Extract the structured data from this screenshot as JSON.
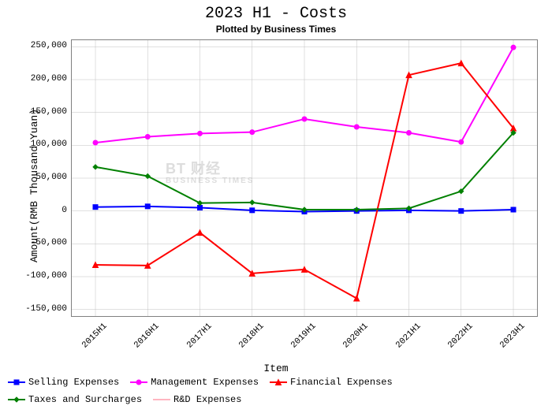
{
  "title": "2023 H1 - Costs",
  "subtitle": "Plotted by Business Times",
  "ylabel": "Amount(RMB Thousand Yuan)",
  "xlabel": "Item",
  "watermark": "BT 财经",
  "watermark_sub": "BUSINESS TIMES",
  "watermark_color": "#dddddd",
  "plot": {
    "background": "#ffffff",
    "border_color": "#808080",
    "grid_color": "#c0c0c0",
    "grid_width": 0.5,
    "categories": [
      "2015H1",
      "2016H1",
      "2017H1",
      "2018H1",
      "2019H1",
      "2020H1",
      "2021H1",
      "2022H1",
      "2023H1"
    ],
    "ylim": [
      -160000,
      260000
    ],
    "yticks": [
      -150000,
      -100000,
      -50000,
      0,
      50000,
      100000,
      150000,
      200000,
      250000
    ],
    "ytick_labels": [
      "-150,000",
      "-100,000",
      "-50,000",
      "0",
      "50,000",
      "100,000",
      "150,000",
      "200,000",
      "250,000"
    ],
    "label_fontsize": 11,
    "xlabel_rotation": -45
  },
  "series": [
    {
      "name": "Selling Expenses",
      "color": "#0000ff",
      "marker": "square",
      "line_width": 2,
      "marker_size": 6,
      "data": [
        6000,
        7000,
        5000,
        1000,
        -1000,
        0,
        1000,
        0,
        2000
      ]
    },
    {
      "name": "Management Expenses",
      "color": "#ff00ff",
      "marker": "circle",
      "line_width": 2,
      "marker_size": 6,
      "data": [
        104000,
        113000,
        118000,
        120000,
        140000,
        128000,
        119000,
        105000,
        249000
      ]
    },
    {
      "name": "Financial Expenses",
      "color": "#ff0000",
      "marker": "triangle",
      "line_width": 2,
      "marker_size": 7,
      "data": [
        -82000,
        -83000,
        -33000,
        -95000,
        -89000,
        -133000,
        207000,
        225000,
        126000
      ]
    },
    {
      "name": "Taxes and Surcharges",
      "color": "#008000",
      "marker": "diamond",
      "line_width": 2,
      "marker_size": 6,
      "data": [
        67000,
        53000,
        12000,
        13000,
        2000,
        2000,
        4000,
        30000,
        119000
      ]
    },
    {
      "name": "R&D Expenses",
      "color": "#ffb6c1",
      "marker": "dash",
      "line_width": 2,
      "marker_size": 6,
      "data": [
        null,
        null,
        null,
        null,
        null,
        null,
        null,
        null,
        null
      ]
    }
  ],
  "legend": {
    "items": [
      "Selling Expenses",
      "Management Expenses",
      "Financial Expenses",
      "Taxes and Surcharges",
      "R&D Expenses"
    ]
  }
}
